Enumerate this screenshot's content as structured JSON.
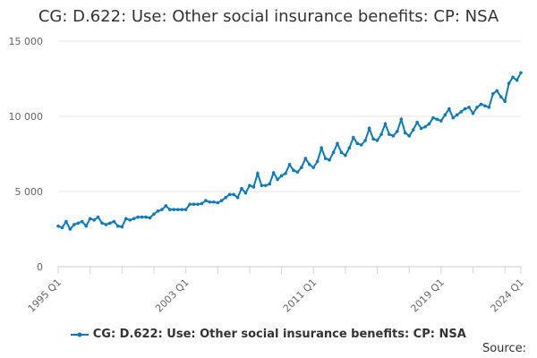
{
  "chart_data": {
    "type": "line",
    "title": "CG: D.622: Use: Other social insurance benefits: CP: NSA",
    "xlabel": "",
    "ylabel": "",
    "ylim": [
      0,
      15000
    ],
    "y_ticks": [
      "0",
      "5 000",
      "10 000",
      "15 000"
    ],
    "y_tick_values": [
      0,
      5000,
      10000,
      15000
    ],
    "x_tick_labels": [
      "1995 Q1",
      "2003 Q1",
      "2011 Q1",
      "2019 Q1",
      "2024 Q1"
    ],
    "x_start": "1995 Q1",
    "x_end": "2024 Q1",
    "grid": "horizontal",
    "legend_position": "bottom",
    "color": "#0a7bc1",
    "series": [
      {
        "name": "CG: D.622: Use: Other social insurance benefits: CP: NSA",
        "values": [
          2700,
          2600,
          3000,
          2500,
          2800,
          2900,
          3000,
          2700,
          3200,
          3100,
          3300,
          2900,
          2800,
          2900,
          3000,
          2700,
          2650,
          3200,
          3100,
          3200,
          3300,
          3300,
          3300,
          3250,
          3500,
          3700,
          3800,
          4050,
          3800,
          3800,
          3800,
          3800,
          3800,
          4150,
          4150,
          4150,
          4200,
          4400,
          4300,
          4300,
          4250,
          4400,
          4600,
          4800,
          4800,
          4600,
          5200,
          4900,
          5400,
          5300,
          6200,
          5400,
          5400,
          5500,
          6250,
          5800,
          6050,
          6200,
          6800,
          6400,
          6300,
          6600,
          7200,
          6800,
          6600,
          7000,
          7900,
          7200,
          7100,
          7600,
          8200,
          7600,
          7400,
          7900,
          8600,
          8200,
          8100,
          8400,
          9200,
          8500,
          8400,
          8800,
          9500,
          8800,
          8700,
          9000,
          9800,
          8900,
          8700,
          9100,
          9600,
          9200,
          9300,
          9500,
          9900,
          9800,
          9700,
          10100,
          10500,
          9900,
          10100,
          10300,
          10500,
          10600,
          10200,
          10600,
          10800,
          10700,
          10600,
          11500,
          11700,
          11300,
          11000,
          12200,
          12600,
          12400,
          12900
        ]
      }
    ]
  },
  "source_label": "Source:"
}
